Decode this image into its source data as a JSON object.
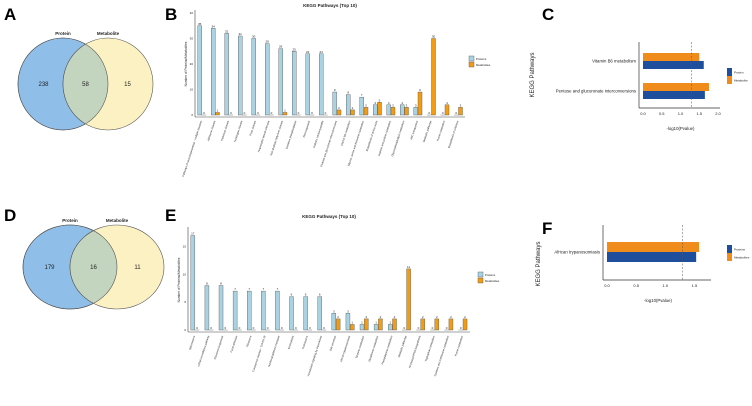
{
  "panels": {
    "A": "A",
    "B": "B",
    "C": "C",
    "D": "D",
    "E": "E",
    "F": "F"
  },
  "colors": {
    "protein_bar": "#a9d3e3",
    "metab_bar": "#f39c12",
    "protein_h": "#1f4e9c",
    "metab_h": "#f08c1c",
    "venn_protein": "#8fbfe8",
    "venn_metab": "#fbf1c2",
    "venn_overlap": "#c4d5bf"
  },
  "chart_data": [
    {
      "type": "venn",
      "panel": "A",
      "sets": [
        "Protein",
        "Metabolite"
      ],
      "only_a": 238,
      "both": 58,
      "only_b": 15
    },
    {
      "type": "bar",
      "panel": "B",
      "title": "KEGG Pathways (Top 10)",
      "ylabel": "Number of Proteins/Metabolites",
      "ylim": [
        0,
        40
      ],
      "yticks": [
        0,
        10,
        20,
        30,
        40
      ],
      "legend": [
        "Proteins",
        "Metabolites"
      ],
      "categories": [
        "Pathways of neurodegeneration - multiple diseases",
        "Alzheimer disease",
        "Parkinson disease",
        "Huntington disease",
        "Prion disease",
        "Amyotrophic lateral sclerosis",
        "Non-alcoholic fatty liver disease",
        "Oxidative phosphorylation",
        "Thermogenesis",
        "Diabetic cardiomyopathy",
        "Pentose and glucuronate interconversions",
        "Vitamin B6 metabolism",
        "Glycine, serine and threonine metabolism",
        "Biosynthesis of amino acids",
        "Arginine and proline metabolism",
        "Glycerophospholipid metabolism",
        "ABC transporters",
        "Metabolic pathways",
        "Purine metabolism",
        "Biosynthesis of cofactors"
      ],
      "series": [
        {
          "name": "Proteins",
          "values": [
            35,
            34,
            32,
            31,
            30,
            28,
            26,
            25,
            24,
            24,
            9,
            8,
            7,
            4,
            4,
            4,
            3,
            0,
            0,
            0
          ]
        },
        {
          "name": "Metabolites",
          "values": [
            0,
            1,
            0,
            0,
            0,
            0,
            1,
            0,
            0,
            0,
            2,
            2,
            3,
            5,
            3,
            3,
            9,
            30,
            4,
            3
          ]
        }
      ]
    },
    {
      "type": "bar",
      "panel": "C",
      "orientation": "horizontal",
      "xlabel": "-log10(Pvalue)",
      "ylabel": "KEGG Pathways",
      "xlim": [
        0,
        2
      ],
      "xticks": [
        "0.0",
        "0.5",
        "1.0",
        "1.5",
        "2.0"
      ],
      "threshold": 1.3,
      "legend": [
        "Protein",
        "Metabolite"
      ],
      "categories": [
        "Vitamin B6 metabolism",
        "Pentose and glucuronate interconversions"
      ],
      "series": [
        {
          "name": "Protein",
          "values": [
            1.62,
            1.65
          ]
        },
        {
          "name": "Metabolite",
          "values": [
            1.5,
            1.76
          ]
        }
      ]
    },
    {
      "type": "venn",
      "panel": "D",
      "sets": [
        "Protein",
        "Metabolite"
      ],
      "only_a": 179,
      "both": 16,
      "only_b": 11
    },
    {
      "type": "bar",
      "panel": "E",
      "title": "KEGG Pathways (Top 10)",
      "ylabel": "Number of Proteins/Metabolites",
      "ylim": [
        0,
        18
      ],
      "yticks": [
        0,
        5,
        10,
        15
      ],
      "legend": [
        "Proteins",
        "Metabolites"
      ],
      "categories": [
        "Spliceosome",
        "mRNA surveillance pathway",
        "Ribosome biogenesis",
        "Focal adhesion",
        "Ribosome",
        "Coronavirus disease - COVID-19",
        "Nucleocytoplasmic transport",
        "Endocytosis",
        "Proteasome",
        "Amoebiasis signaling by chemokines",
        "Bile secretion",
        "African trypanosomiasis",
        "Tyrosine metabolism",
        "Glutathione metabolism",
        "Phenylalanine metabolism",
        "Metabolic pathways",
        "Aminoacyl-tRNA biosynthesis",
        "Tryptophan metabolism",
        "Cysteine and methionine metabolism",
        "Purine metabolism"
      ],
      "series": [
        {
          "name": "Proteins",
          "values": [
            17,
            8,
            8,
            7,
            7,
            7,
            7,
            6,
            6,
            6,
            3,
            3,
            1,
            1,
            1,
            0,
            0,
            0,
            0,
            0
          ]
        },
        {
          "name": "Metabolites",
          "values": [
            0,
            0,
            0,
            0,
            0,
            0,
            0,
            0,
            0,
            0,
            2,
            1,
            2,
            2,
            2,
            11,
            2,
            2,
            2,
            2
          ]
        }
      ]
    },
    {
      "type": "bar",
      "panel": "F",
      "orientation": "horizontal",
      "xlabel": "-log10(Pvalue)",
      "ylabel": "KEGG Pathways",
      "xlim": [
        0,
        1.75
      ],
      "xticks": [
        "0.0",
        "0.5",
        "1.0",
        "1.5"
      ],
      "threshold": 1.3,
      "legend": [
        "Proteins",
        "Metabolites"
      ],
      "categories": [
        "African trypanosomiasis"
      ],
      "series": [
        {
          "name": "Proteins",
          "values": [
            1.53
          ]
        },
        {
          "name": "Metabolites",
          "values": [
            1.58
          ]
        }
      ]
    }
  ]
}
